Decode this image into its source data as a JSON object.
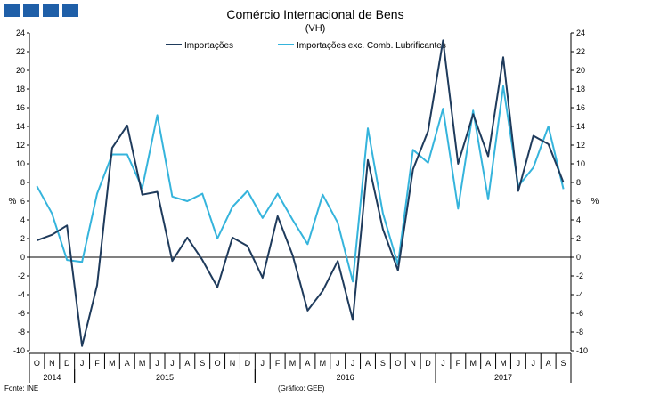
{
  "chart_data": {
    "type": "line",
    "title": "Comércio Internacional de Bens",
    "subtitle": "(VH)",
    "ylabel_left": "%",
    "ylabel_right": "%",
    "ylim": [
      -10,
      24
    ],
    "yticks": [
      -10,
      -8,
      -6,
      -4,
      -2,
      0,
      2,
      4,
      6,
      8,
      10,
      12,
      14,
      16,
      18,
      20,
      22,
      24
    ],
    "x": [
      "O",
      "N",
      "D",
      "J",
      "F",
      "M",
      "A",
      "M",
      "J",
      "J",
      "A",
      "S",
      "O",
      "N",
      "D",
      "J",
      "F",
      "M",
      "A",
      "M",
      "J",
      "J",
      "A",
      "S",
      "O",
      "N",
      "D",
      "J",
      "F",
      "M",
      "A",
      "M",
      "J",
      "J",
      "A",
      "S"
    ],
    "years": [
      {
        "label": "2014",
        "start": 0,
        "end": 2
      },
      {
        "label": "2015",
        "start": 3,
        "end": 14
      },
      {
        "label": "2016",
        "start": 15,
        "end": 26
      },
      {
        "label": "2017",
        "start": 27,
        "end": 35
      }
    ],
    "series": [
      {
        "name": "Importações",
        "color": "#1f3b5c",
        "values": [
          1.8,
          2.4,
          3.4,
          -9.5,
          -3.0,
          11.7,
          14.1,
          6.7,
          7.0,
          -0.4,
          2.1,
          -0.3,
          -3.2,
          2.1,
          1.2,
          -2.2,
          4.4,
          0.2,
          -5.7,
          -3.6,
          -0.4,
          -6.7,
          10.4,
          3.0,
          -1.4,
          9.4,
          13.5,
          23.2,
          10.0,
          15.3,
          10.8,
          21.4,
          7.1,
          13.0,
          12.1,
          8.0
        ]
      },
      {
        "name": "Importações exc. Comb. Lubrificantes",
        "color": "#35b4dc",
        "values": [
          7.6,
          4.7,
          -0.3,
          -0.5,
          6.8,
          11.0,
          11.0,
          7.4,
          15.2,
          6.5,
          6.0,
          6.8,
          2.0,
          5.4,
          7.1,
          4.2,
          6.8,
          4.0,
          1.4,
          6.7,
          3.7,
          -2.6,
          13.8,
          4.7,
          -0.8,
          11.5,
          10.1,
          15.9,
          5.2,
          15.7,
          6.2,
          18.3,
          7.6,
          9.6,
          14.0,
          7.3
        ]
      }
    ],
    "legend": "top"
  },
  "footer": {
    "source": "Fonte: INE",
    "credit": "(Gráfico: GEE)"
  }
}
